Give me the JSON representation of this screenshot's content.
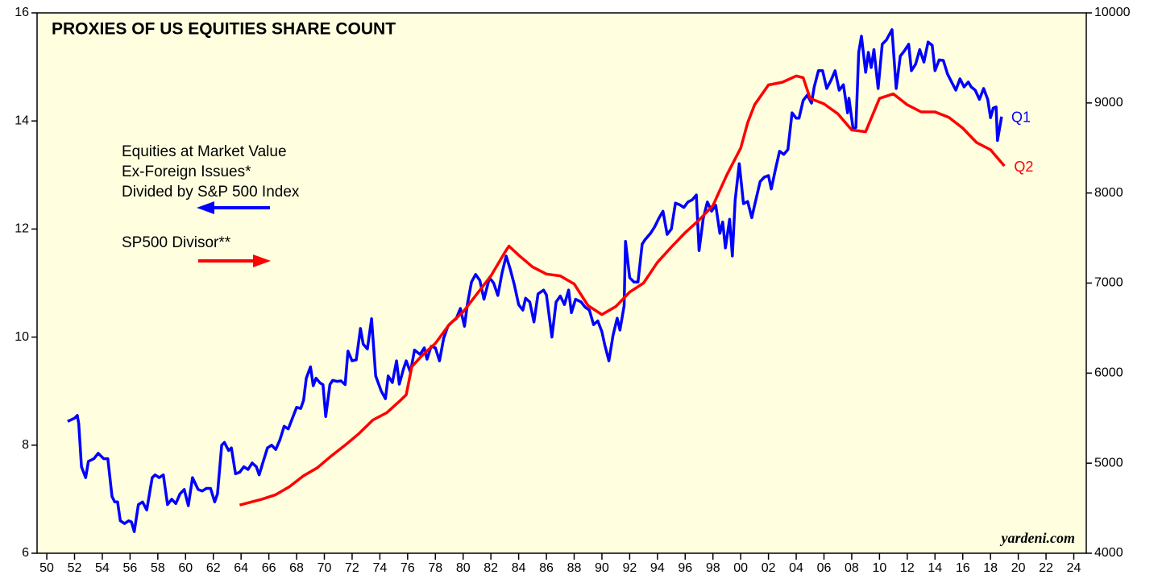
{
  "chart_data": {
    "type": "line",
    "title": "PROXIES OF US EQUITIES SHARE COUNT",
    "annotations": [
      "Equities at Market Value",
      "Ex-Foreign Issues*",
      "Divided by S&P 500 Index",
      "SP500 Divisor**"
    ],
    "source": "yardeni.com",
    "xlim": [
      1949.3,
      2024.9
    ],
    "xticks": [
      {
        "value": 1950,
        "label": "50"
      },
      {
        "value": 1952,
        "label": "52"
      },
      {
        "value": 1954,
        "label": "54"
      },
      {
        "value": 1956,
        "label": "56"
      },
      {
        "value": 1958,
        "label": "58"
      },
      {
        "value": 1960,
        "label": "60"
      },
      {
        "value": 1962,
        "label": "62"
      },
      {
        "value": 1964,
        "label": "64"
      },
      {
        "value": 1966,
        "label": "66"
      },
      {
        "value": 1968,
        "label": "68"
      },
      {
        "value": 1970,
        "label": "70"
      },
      {
        "value": 1972,
        "label": "72"
      },
      {
        "value": 1974,
        "label": "74"
      },
      {
        "value": 1976,
        "label": "76"
      },
      {
        "value": 1978,
        "label": "78"
      },
      {
        "value": 1980,
        "label": "80"
      },
      {
        "value": 1982,
        "label": "82"
      },
      {
        "value": 1984,
        "label": "84"
      },
      {
        "value": 1986,
        "label": "86"
      },
      {
        "value": 1988,
        "label": "88"
      },
      {
        "value": 1990,
        "label": "90"
      },
      {
        "value": 1992,
        "label": "92"
      },
      {
        "value": 1994,
        "label": "94"
      },
      {
        "value": 1996,
        "label": "96"
      },
      {
        "value": 1998,
        "label": "98"
      },
      {
        "value": 2000,
        "label": "00"
      },
      {
        "value": 2002,
        "label": "02"
      },
      {
        "value": 2004,
        "label": "04"
      },
      {
        "value": 2006,
        "label": "06"
      },
      {
        "value": 2008,
        "label": "08"
      },
      {
        "value": 2010,
        "label": "10"
      },
      {
        "value": 2012,
        "label": "12"
      },
      {
        "value": 2014,
        "label": "14"
      },
      {
        "value": 2016,
        "label": "16"
      },
      {
        "value": 2018,
        "label": "18"
      },
      {
        "value": 2020,
        "label": "20"
      },
      {
        "value": 2022,
        "label": "22"
      },
      {
        "value": 2024,
        "label": "24"
      }
    ],
    "ylim": [
      6,
      16
    ],
    "yticks": [
      6,
      8,
      10,
      12,
      14,
      16
    ],
    "y2lim": [
      4000,
      10000
    ],
    "y2ticks": [
      4000,
      5000,
      6000,
      7000,
      8000,
      9000,
      10000
    ],
    "series": [
      {
        "name": "Q1",
        "color": "#0000ff",
        "axis": "y",
        "x": [
          1951.5,
          1952.0,
          1952.2,
          1952.3,
          1952.5,
          1952.8,
          1953.0,
          1953.4,
          1953.7,
          1954.1,
          1954.4,
          1954.7,
          1954.9,
          1955.1,
          1955.3,
          1955.6,
          1955.9,
          1956.1,
          1956.3,
          1956.6,
          1956.9,
          1957.2,
          1957.6,
          1957.8,
          1958.1,
          1958.4,
          1958.7,
          1959.0,
          1959.3,
          1959.6,
          1959.9,
          1960.2,
          1960.5,
          1960.9,
          1961.2,
          1961.5,
          1961.8,
          1962.1,
          1962.3,
          1962.6,
          1962.8,
          1963.1,
          1963.3,
          1963.6,
          1963.9,
          1964.2,
          1964.5,
          1964.8,
          1965.1,
          1965.3,
          1965.6,
          1965.9,
          1966.2,
          1966.5,
          1966.8,
          1967.1,
          1967.4,
          1967.7,
          1968.0,
          1968.3,
          1968.5,
          1968.7,
          1969.0,
          1969.2,
          1969.4,
          1969.7,
          1969.9,
          1970.1,
          1970.4,
          1970.6,
          1970.9,
          1971.2,
          1971.5,
          1971.7,
          1972.0,
          1972.3,
          1972.6,
          1972.8,
          1973.1,
          1973.4,
          1973.7,
          1974.1,
          1974.4,
          1974.6,
          1974.9,
          1975.2,
          1975.4,
          1975.7,
          1975.9,
          1976.2,
          1976.5,
          1976.9,
          1977.2,
          1977.4,
          1977.7,
          1978.0,
          1978.3,
          1978.6,
          1978.9,
          1979.2,
          1979.5,
          1979.8,
          1980.1,
          1980.3,
          1980.6,
          1980.9,
          1981.2,
          1981.5,
          1981.9,
          1982.2,
          1982.5,
          1982.8,
          1983.1,
          1983.4,
          1983.7,
          1984.0,
          1984.3,
          1984.5,
          1984.8,
          1985.1,
          1985.4,
          1985.8,
          1986.0,
          1986.4,
          1986.7,
          1987.0,
          1987.3,
          1987.6,
          1987.8,
          1988.1,
          1988.5,
          1988.8,
          1989.1,
          1989.4,
          1989.7,
          1990.0,
          1990.2,
          1990.5,
          1990.8,
          1991.1,
          1991.3,
          1991.6,
          1991.7,
          1992.0,
          1992.3,
          1992.6,
          1992.9,
          1993.1,
          1993.5,
          1993.8,
          1994.1,
          1994.4,
          1994.7,
          1995.0,
          1995.3,
          1995.6,
          1995.9,
          1996.2,
          1996.5,
          1996.8,
          1997.0,
          1997.3,
          1997.6,
          1997.9,
          1998.2,
          1998.5,
          1998.7,
          1998.9,
          1999.2,
          1999.4,
          1999.6,
          1999.9,
          2000.2,
          2000.5,
          2000.8,
          2001.0,
          2001.4,
          2001.7,
          2002.0,
          2002.2,
          2002.5,
          2002.8,
          2003.1,
          2003.4,
          2003.7,
          2004.0,
          2004.2,
          2004.5,
          2004.8,
          2005.1,
          2005.3,
          2005.6,
          2005.9,
          2006.2,
          2006.5,
          2006.8,
          2007.1,
          2007.4,
          2007.7,
          2007.8,
          2008.1,
          2008.3,
          2008.5,
          2008.7,
          2009.0,
          2009.2,
          2009.4,
          2009.6,
          2009.9,
          2010.2,
          2010.5,
          2010.9,
          2011.2,
          2011.5,
          2011.8,
          2012.1,
          2012.3,
          2012.6,
          2012.9,
          2013.2,
          2013.5,
          2013.8,
          2014.0,
          2014.3,
          2014.6,
          2014.9,
          2015.2,
          2015.5,
          2015.8,
          2016.1,
          2016.4,
          2016.6,
          2016.9,
          2017.2,
          2017.5,
          2017.8,
          2018.0,
          2018.2,
          2018.4,
          2018.5,
          2018.8
        ],
        "values": [
          8.44,
          8.5,
          8.55,
          8.4,
          7.6,
          7.4,
          7.7,
          7.75,
          7.85,
          7.75,
          7.75,
          7.05,
          6.95,
          6.95,
          6.6,
          6.55,
          6.6,
          6.58,
          6.4,
          6.9,
          6.95,
          6.8,
          7.4,
          7.45,
          7.4,
          7.45,
          6.9,
          7.0,
          6.92,
          7.1,
          7.18,
          6.88,
          7.4,
          7.18,
          7.15,
          7.2,
          7.2,
          6.95,
          7.1,
          8.0,
          8.05,
          7.9,
          7.95,
          7.47,
          7.5,
          7.6,
          7.55,
          7.67,
          7.6,
          7.45,
          7.7,
          7.95,
          8.0,
          7.92,
          8.1,
          8.35,
          8.3,
          8.5,
          8.7,
          8.68,
          8.83,
          9.24,
          9.45,
          9.1,
          9.24,
          9.15,
          9.12,
          8.53,
          9.12,
          9.2,
          9.18,
          9.19,
          9.12,
          9.74,
          9.56,
          9.58,
          10.16,
          9.87,
          9.78,
          10.34,
          9.28,
          9.0,
          8.86,
          9.28,
          9.16,
          9.56,
          9.13,
          9.41,
          9.56,
          9.35,
          9.76,
          9.68,
          9.8,
          9.59,
          9.83,
          9.8,
          9.56,
          9.98,
          10.2,
          10.28,
          10.34,
          10.53,
          10.2,
          10.6,
          11.02,
          11.16,
          11.05,
          10.7,
          11.1,
          11.0,
          10.77,
          11.18,
          11.5,
          11.25,
          10.96,
          10.6,
          10.5,
          10.72,
          10.65,
          10.28,
          10.8,
          10.87,
          10.78,
          10.0,
          10.65,
          10.76,
          10.6,
          10.87,
          10.45,
          10.7,
          10.65,
          10.55,
          10.5,
          10.23,
          10.3,
          10.1,
          9.86,
          9.56,
          10.03,
          10.35,
          10.13,
          10.58,
          11.77,
          11.1,
          11.02,
          11.02,
          11.72,
          11.8,
          11.92,
          12.04,
          12.2,
          12.33,
          11.9,
          12.0,
          12.48,
          12.45,
          12.4,
          12.5,
          12.54,
          12.63,
          11.6,
          12.2,
          12.5,
          12.33,
          12.44,
          11.92,
          12.13,
          11.65,
          12.18,
          11.5,
          12.54,
          13.21,
          12.47,
          12.51,
          12.21,
          12.44,
          12.88,
          12.96,
          12.99,
          12.74,
          13.1,
          13.44,
          13.38,
          13.47,
          14.15,
          14.05,
          14.05,
          14.38,
          14.48,
          14.33,
          14.63,
          14.93,
          14.93,
          14.6,
          14.75,
          14.93,
          14.57,
          14.67,
          14.15,
          14.42,
          13.85,
          13.88,
          15.27,
          15.57,
          14.9,
          15.27,
          14.99,
          15.32,
          14.6,
          15.42,
          15.5,
          15.69,
          14.6,
          15.2,
          15.3,
          15.42,
          14.93,
          15.05,
          15.32,
          15.09,
          15.46,
          15.4,
          14.93,
          15.13,
          15.12,
          14.87,
          14.72,
          14.57,
          14.78,
          14.63,
          14.72,
          14.63,
          14.57,
          14.4,
          14.6,
          14.4,
          14.06,
          14.24,
          14.26,
          13.64,
          14.08
        ]
      },
      {
        "name": "Q2",
        "color": "#ff0000",
        "axis": "y2",
        "x": [
          1963.9,
          1964.5,
          1965.5,
          1966.5,
          1967.5,
          1968.5,
          1969.5,
          1970.5,
          1971.5,
          1972.5,
          1973.5,
          1974.5,
          1975.5,
          1975.9,
          1976.3,
          1977.0,
          1978.0,
          1979.0,
          1980.0,
          1981.0,
          1982.0,
          1983.0,
          1983.3,
          1984.0,
          1985.0,
          1986.0,
          1987.0,
          1988.0,
          1989.0,
          1990.0,
          1991.0,
          1992.0,
          1993.0,
          1994.0,
          1995.0,
          1996.0,
          1997.0,
          1998.0,
          1999.0,
          2000.0,
          2000.5,
          2001.0,
          2002.0,
          2003.0,
          2004.0,
          2004.5,
          2005.0,
          2006.0,
          2007.0,
          2008.0,
          2009.0,
          2010.0,
          2011.0,
          2012.0,
          2013.0,
          2014.0,
          2015.0,
          2016.0,
          2017.0,
          2018.0,
          2019.0
        ],
        "values": [
          4535,
          4560,
          4600,
          4650,
          4740,
          4860,
          4950,
          5080,
          5200,
          5330,
          5480,
          5560,
          5700,
          5760,
          6070,
          6190,
          6330,
          6540,
          6680,
          6880,
          7080,
          7340,
          7410,
          7310,
          7180,
          7100,
          7080,
          6990,
          6750,
          6650,
          6740,
          6900,
          7000,
          7230,
          7400,
          7560,
          7700,
          7860,
          8200,
          8500,
          8780,
          8980,
          9200,
          9230,
          9300,
          9280,
          9050,
          8990,
          8880,
          8700,
          8680,
          9050,
          9100,
          8980,
          8900,
          8900,
          8840,
          8720,
          8560,
          8480,
          8300
        ]
      }
    ]
  }
}
